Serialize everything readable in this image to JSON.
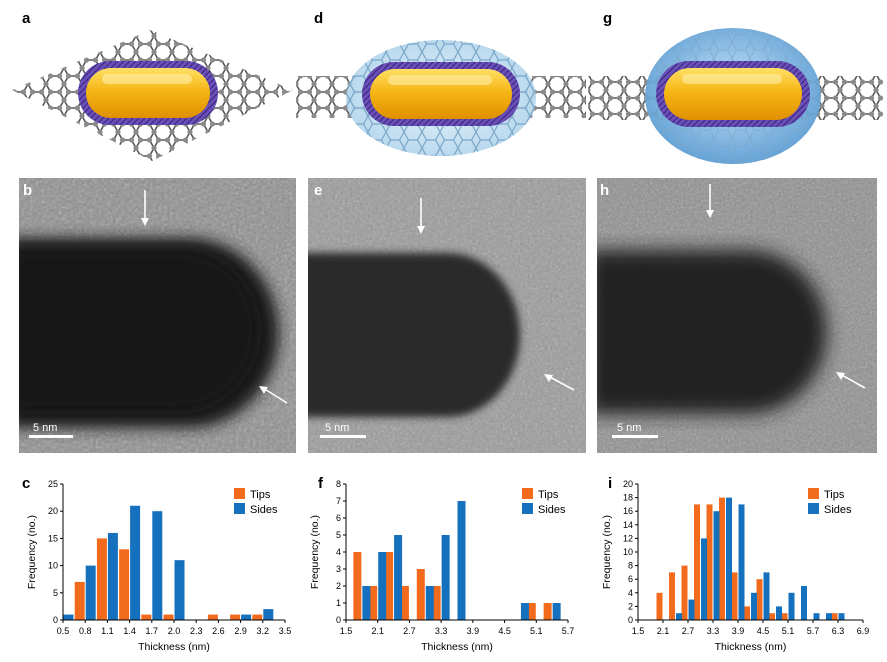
{
  "colors": {
    "tips": "#f26b1d",
    "sides": "#1570be",
    "gold": "#f5b815",
    "ligand": "#5a3ea8",
    "carbon": "#666666",
    "shell_blue": "#5aa0d8"
  },
  "panels": {
    "a": "a",
    "b": "b",
    "c": "c",
    "d": "d",
    "e": "e",
    "f": "f",
    "g": "g",
    "h": "h",
    "i": "i"
  },
  "scale_bar": "5 nm",
  "chart_data": [
    {
      "type": "bar",
      "panel": "c",
      "xlabel": "Thickness (nm)",
      "ylabel": "Frequency (no.)",
      "xlim": [
        0.5,
        3.5
      ],
      "xticks": [
        "0.5",
        "0.8",
        "1.1",
        "1.4",
        "1.7",
        "2.0",
        "2.3",
        "2.6",
        "2.9",
        "3.2",
        "3.5"
      ],
      "ylim": [
        0,
        25
      ],
      "yticks": [
        "0",
        "5",
        "10",
        "15",
        "20",
        "25"
      ],
      "legend": "top-right",
      "series": [
        {
          "name": "Tips",
          "x": [
            0.5,
            0.8,
            1.1,
            1.4,
            1.7,
            2.0,
            2.3,
            2.6,
            2.9,
            3.2
          ],
          "values": [
            0,
            7,
            15,
            13,
            1,
            1,
            0,
            1,
            1,
            1
          ]
        },
        {
          "name": "Sides",
          "x": [
            0.5,
            0.8,
            1.1,
            1.4,
            1.7,
            2.0,
            2.3,
            2.6,
            2.9,
            3.2
          ],
          "values": [
            1,
            10,
            16,
            21,
            20,
            11,
            0,
            0,
            1,
            2
          ]
        }
      ]
    },
    {
      "type": "bar",
      "panel": "f",
      "xlabel": "Thickness (nm)",
      "ylabel": "Frequency (no.)",
      "xlim": [
        1.5,
        5.7
      ],
      "xticks": [
        "1.5",
        "2.1",
        "2.7",
        "3.3",
        "3.9",
        "4.5",
        "5.1",
        "5.7"
      ],
      "ylim": [
        0,
        8
      ],
      "yticks": [
        "0",
        "1",
        "2",
        "3",
        "4",
        "5",
        "6",
        "7",
        "8"
      ],
      "legend": "top-right",
      "series": [
        {
          "name": "Tips",
          "x": [
            1.8,
            2.1,
            2.4,
            2.7,
            3.0,
            3.3,
            3.6,
            3.9,
            4.2,
            4.5,
            4.8,
            5.1,
            5.4
          ],
          "values": [
            4,
            2,
            4,
            2,
            3,
            2,
            0,
            0,
            0,
            0,
            0,
            1,
            1
          ]
        },
        {
          "name": "Sides",
          "x": [
            1.8,
            2.1,
            2.4,
            2.7,
            3.0,
            3.3,
            3.6,
            3.9,
            4.2,
            4.5,
            4.8,
            5.1,
            5.4
          ],
          "values": [
            2,
            4,
            5,
            0,
            2,
            5,
            7,
            0,
            0,
            0,
            1,
            0,
            1
          ]
        }
      ]
    },
    {
      "type": "bar",
      "panel": "i",
      "xlabel": "Thickness (nm)",
      "ylabel": "Frequency (no.)",
      "xlim": [
        1.5,
        6.9
      ],
      "xticks": [
        "1.5",
        "2.1",
        "2.7",
        "3.3",
        "3.9",
        "4.5",
        "5.1",
        "5.7",
        "6.3",
        "6.9"
      ],
      "ylim": [
        0,
        20
      ],
      "yticks": [
        "0",
        "2",
        "4",
        "6",
        "8",
        "10",
        "12",
        "14",
        "16",
        "18",
        "20"
      ],
      "legend": "top-right",
      "series": [
        {
          "name": "Tips",
          "x": [
            2.1,
            2.4,
            2.7,
            3.0,
            3.3,
            3.6,
            3.9,
            4.2,
            4.5,
            4.8,
            5.1,
            5.4,
            5.7,
            6.0,
            6.3
          ],
          "values": [
            4,
            7,
            8,
            17,
            17,
            18,
            7,
            2,
            6,
            1,
            1,
            0,
            0,
            0,
            1
          ]
        },
        {
          "name": "Sides",
          "x": [
            2.1,
            2.4,
            2.7,
            3.0,
            3.3,
            3.6,
            3.9,
            4.2,
            4.5,
            4.8,
            5.1,
            5.4,
            5.7,
            6.0,
            6.3
          ],
          "values": [
            0,
            1,
            3,
            12,
            16,
            18,
            17,
            4,
            7,
            2,
            4,
            5,
            1,
            1,
            1
          ]
        }
      ]
    }
  ]
}
